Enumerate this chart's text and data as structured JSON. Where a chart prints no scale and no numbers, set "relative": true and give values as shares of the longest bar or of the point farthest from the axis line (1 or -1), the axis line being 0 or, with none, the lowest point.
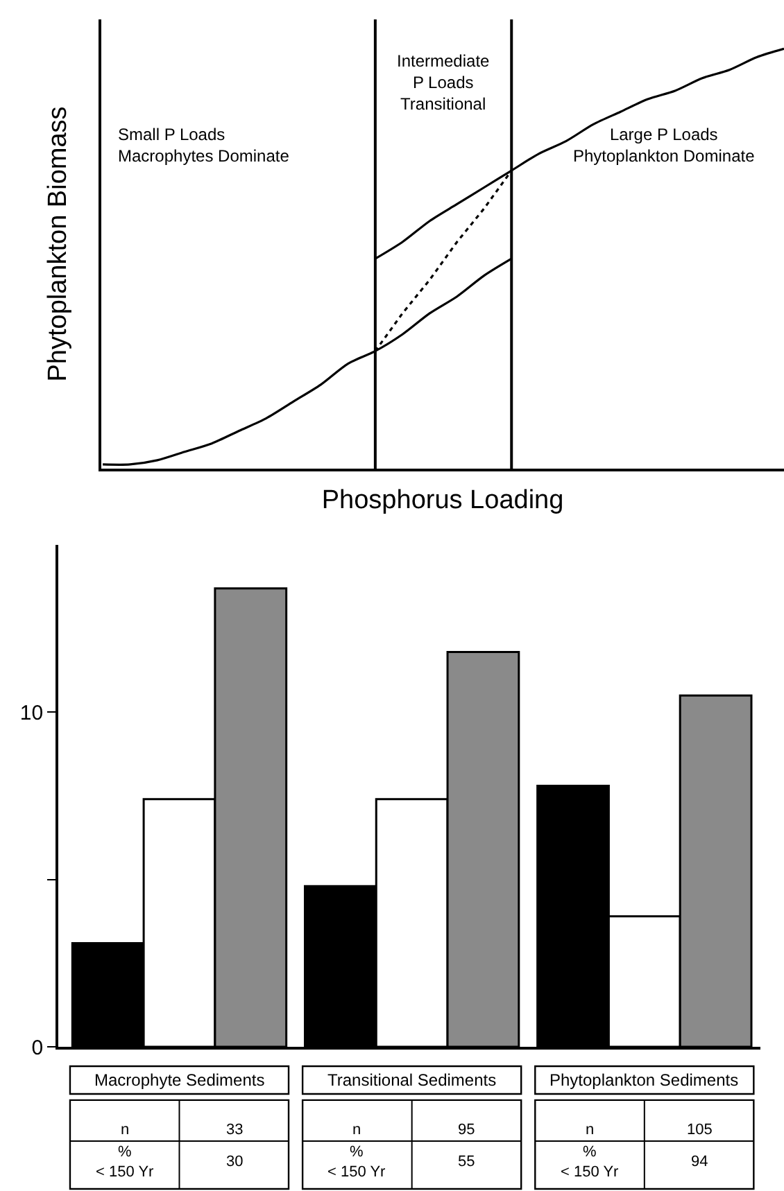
{
  "chart_data": [
    {
      "type": "line",
      "relative": true,
      "xlabel": "Phosphorus Loading",
      "ylabel": "Phytoplankton Biomass",
      "categories": [
        null,
        null,
        null,
        null,
        null,
        null,
        null,
        null,
        null,
        null,
        null,
        null,
        null,
        null,
        null,
        null,
        null,
        null,
        null,
        null,
        null,
        null,
        null,
        null,
        null,
        null
      ],
      "series": [
        {
          "color": "#000000",
          "line_style": "solid",
          "values": [
            0.01,
            0.01,
            0.02,
            0.04,
            0.06,
            0.09,
            0.12,
            0.16,
            0.2,
            0.25,
            0.28,
            0.32,
            0.37,
            0.41,
            0.46,
            0.5,
            null,
            null,
            null,
            null,
            null,
            null,
            null,
            null,
            null,
            null
          ]
        },
        {
          "color": "#000000",
          "line_style": "solid",
          "values": [
            null,
            null,
            null,
            null,
            null,
            null,
            null,
            null,
            null,
            null,
            0.5,
            0.54,
            0.59,
            0.63,
            0.67,
            0.71,
            0.75,
            0.78,
            0.82,
            0.85,
            0.88,
            0.9,
            0.93,
            0.95,
            0.98,
            1.0
          ]
        },
        {
          "color": "#000000",
          "line_style": "dotted",
          "values": [
            null,
            null,
            null,
            null,
            null,
            null,
            null,
            null,
            null,
            null,
            0.28,
            0.37,
            0.45,
            0.54,
            0.62,
            0.71,
            null,
            null,
            null,
            null,
            null,
            null,
            null,
            null,
            null,
            null
          ]
        }
      ],
      "annotations": [
        "Small P Loads\nMacrophytes Dominate",
        "Intermediate\nP Loads\nTransitional",
        "Large P Loads\nPhytoplankton Dominate"
      ]
    },
    {
      "type": "bar",
      "categories": [
        "Macrophyte Sediments",
        "Transitional Sediments",
        "Phytoplankton Sediments"
      ],
      "series": [
        {
          "color": "#000000",
          "values": [
            3.1,
            4.8,
            7.8
          ]
        },
        {
          "color": "#ffffff",
          "values": [
            7.4,
            7.4,
            3.9
          ]
        },
        {
          "color": "#8a8a8a",
          "values": [
            13.7,
            11.8,
            10.5
          ]
        }
      ],
      "ylim": [
        0,
        15
      ],
      "yticks": [
        0,
        {
          "value": 5,
          "label": null
        },
        10
      ],
      "annotations": [
        "n",
        "33",
        "%\n< 150 Yr",
        "30",
        "n",
        "95",
        "%\n< 150 Yr",
        "55",
        "n",
        "105",
        "%\n< 150 Yr",
        "94"
      ]
    }
  ]
}
